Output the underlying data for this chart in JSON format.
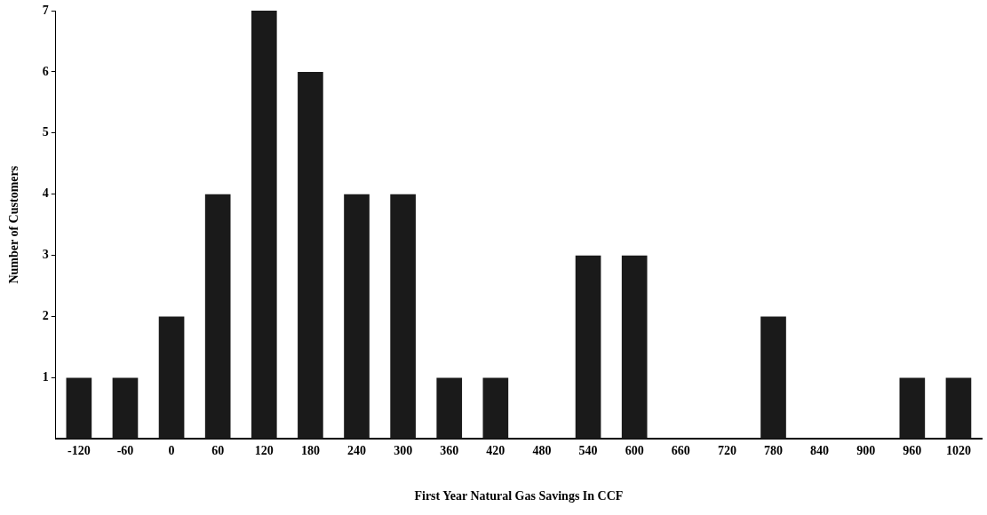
{
  "chart_data": {
    "type": "bar",
    "xlabel": "First Year Natural Gas Savings In CCF",
    "ylabel": "Number of Customers",
    "categories": [
      "-120",
      "-60",
      "0",
      "60",
      "120",
      "180",
      "240",
      "300",
      "360",
      "420",
      "480",
      "540",
      "600",
      "660",
      "720",
      "780",
      "840",
      "900",
      "960",
      "1020"
    ],
    "values": [
      1,
      1,
      2,
      4,
      7,
      6,
      4,
      4,
      1,
      1,
      0,
      3,
      3,
      0,
      0,
      2,
      0,
      0,
      1,
      1
    ],
    "color": "#1a1a1a",
    "ylim": [
      0,
      7
    ],
    "yticks": [
      1,
      2,
      3,
      4,
      5,
      6,
      7
    ],
    "grid": false,
    "legend": false
  }
}
